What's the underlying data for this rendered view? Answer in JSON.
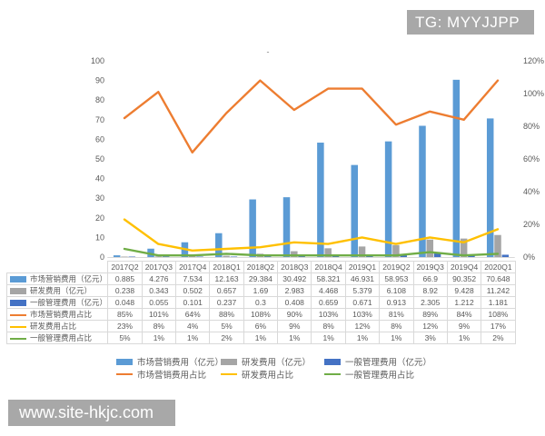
{
  "badge": {
    "text": "TG: MYYJJPP"
  },
  "watermark": {
    "text": "www.site-hkjc.com"
  },
  "colors": {
    "badge_bg": "#A8A8A8",
    "axis_text": "#595959",
    "table_border": "#D9D9D9"
  },
  "chart_data": {
    "type": "bar",
    "subtype": "clustered-bar-with-lines-combo",
    "title": "-",
    "grid": false,
    "legend_position": "bottom",
    "categories": [
      "2017Q2",
      "2017Q3",
      "2017Q4",
      "2018Q1",
      "2018Q2",
      "2018Q3",
      "2018Q4",
      "2019Q1",
      "2019Q2",
      "2019Q3",
      "2019Q4",
      "2020Q1"
    ],
    "bar_series": [
      {
        "name": "市场营销费用（亿元）",
        "color": "#5B9BD5",
        "values": [
          0.885,
          4.276,
          7.534,
          12.163,
          29.384,
          30.492,
          58.321,
          46.931,
          58.953,
          66.9,
          90.352,
          70.648
        ]
      },
      {
        "name": "研发费用（亿元）",
        "color": "#A5A5A5",
        "values": [
          0.238,
          0.343,
          0.502,
          0.657,
          1.69,
          2.983,
          4.468,
          5.379,
          6.108,
          8.92,
          9.428,
          11.242
        ]
      },
      {
        "name": "一般管理费用（亿元）",
        "color": "#4472C4",
        "values": [
          0.048,
          0.055,
          0.101,
          0.237,
          0.3,
          0.408,
          0.659,
          0.671,
          0.913,
          2.305,
          1.212,
          1.181
        ]
      }
    ],
    "line_series": [
      {
        "name": "市场营销费用占比",
        "color": "#ED7D31",
        "values_pct": [
          85,
          101,
          64,
          88,
          108,
          90,
          103,
          103,
          81,
          89,
          84,
          108
        ]
      },
      {
        "name": "研发费用占比",
        "color": "#FFC000",
        "values_pct": [
          23,
          8,
          4,
          5,
          6,
          9,
          8,
          12,
          8,
          12,
          9,
          17
        ]
      },
      {
        "name": "一般管理费用占比",
        "color": "#70AD47",
        "values_pct": [
          5,
          1,
          1,
          2,
          1,
          1,
          1,
          1,
          1,
          3,
          1,
          2
        ]
      }
    ],
    "left_axis": {
      "min": 0,
      "max": 100,
      "step": 10,
      "suffix": ""
    },
    "right_axis": {
      "min": 0,
      "max": 120,
      "step": 20,
      "suffix": "%"
    }
  }
}
